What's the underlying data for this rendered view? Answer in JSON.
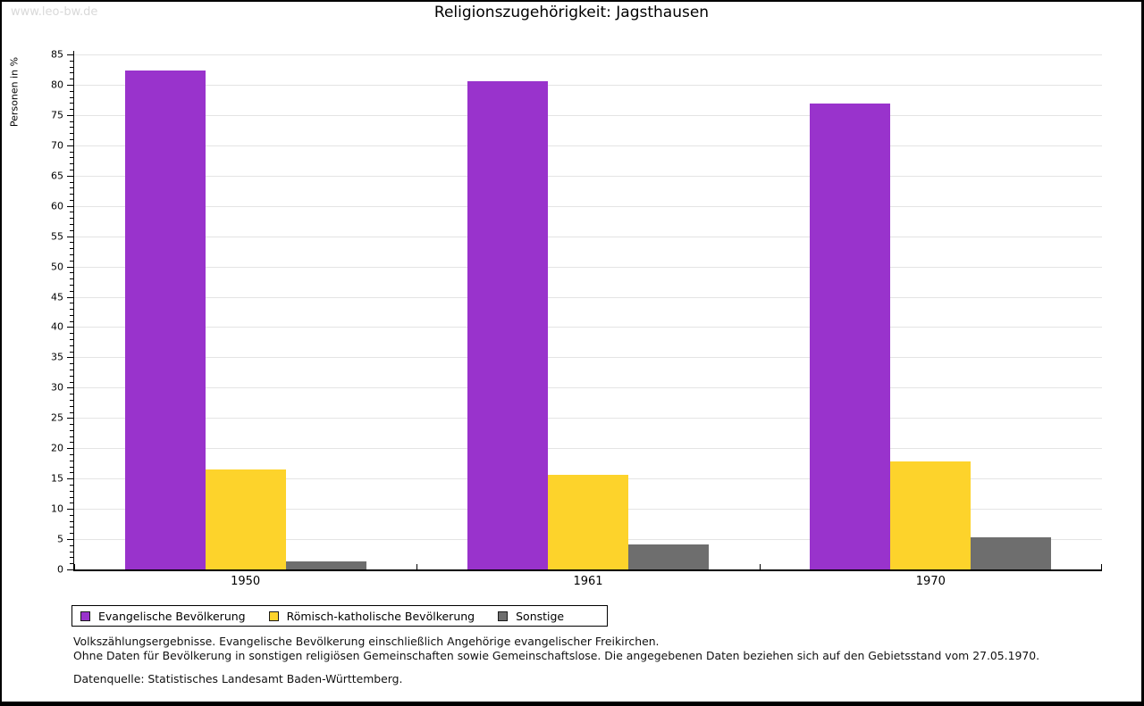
{
  "watermark": "www.leo-bw.de",
  "title": "Religionszugehörigkeit: Jagsthausen",
  "chart_data": {
    "type": "bar",
    "title": "Religionszugehörigkeit: Jagsthausen",
    "xlabel": "",
    "ylabel": "Personen in %",
    "ylim": [
      0,
      85
    ],
    "ytick_step": 5,
    "ytick_minor_step": 1,
    "grid": true,
    "legend_position": "bottom",
    "categories": [
      "1950",
      "1961",
      "1970"
    ],
    "series": [
      {
        "name": "Evangelische Bevölkerung",
        "color": "#9933cc",
        "values": [
          82.3,
          80.6,
          76.9
        ]
      },
      {
        "name": "Römisch-katholische Bevölkerung",
        "color": "#fdd32b",
        "values": [
          16.5,
          15.6,
          17.8
        ]
      },
      {
        "name": "Sonstige",
        "color": "#6e6e6e",
        "values": [
          1.4,
          4.1,
          5.3
        ]
      }
    ]
  },
  "colors": {
    "grid": "#e4e4e4",
    "axis": "#000000",
    "watermark": "#d9d9d9",
    "frame_border": "#000000"
  },
  "footer": {
    "line1": "Volkszählungsergebnisse. Evangelische Bevölkerung einschließlich Angehörige evangelischer Freikirchen.",
    "line2": "Ohne Daten für Bevölkerung in sonstigen religiösen Gemeinschaften sowie Gemeinschaftslose. Die angegebenen Daten beziehen sich auf den Gebietsstand vom 27.05.1970.",
    "source": "Datenquelle: Statistisches Landesamt Baden-Württemberg."
  }
}
